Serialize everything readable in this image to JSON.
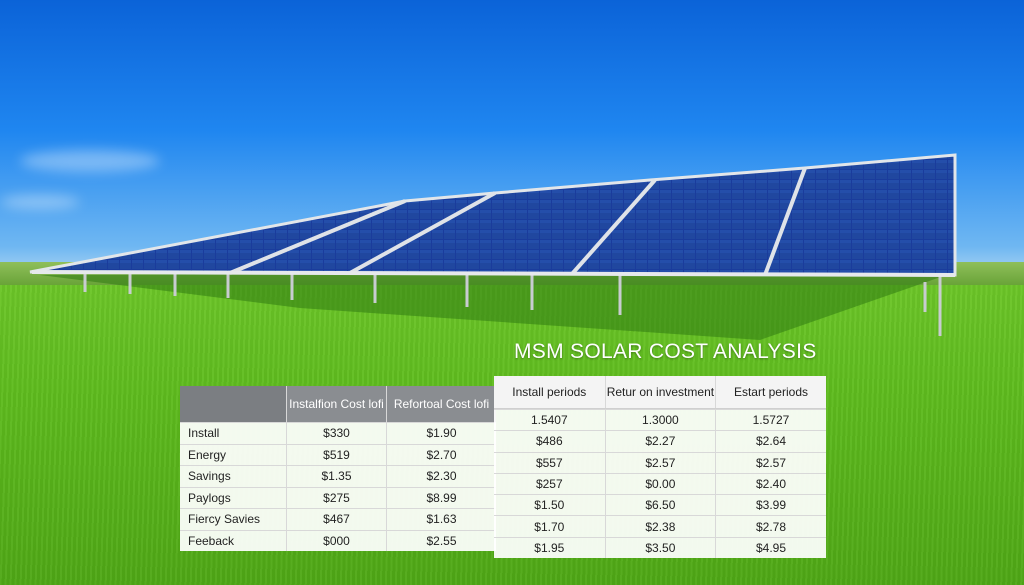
{
  "scene": {
    "colors": {
      "sky_top": "#0b63d8",
      "sky_bottom": "#c8e2f3",
      "grass": "#5fbc1e",
      "panel": "#1c3f9e",
      "frame": "#d9dde2"
    }
  },
  "title": "MSM SOLAR COST ANALYSIS",
  "left_table": {
    "headers": [
      "",
      "Instalfion Cost lofi",
      "Refortoal Cost lofi"
    ],
    "rows": [
      [
        "Install",
        "$330",
        "$1.90"
      ],
      [
        "Energy",
        "$519",
        "$2.70"
      ],
      [
        "Savings",
        "$1.35",
        "$2.30"
      ],
      [
        "Paylogs",
        "$275",
        "$8.99"
      ],
      [
        "Fiercy Savies",
        "$467",
        "$1.63"
      ],
      [
        "Feeback",
        "$000",
        "$2.55"
      ]
    ]
  },
  "right_table": {
    "headers": [
      "Install periods",
      "Retur on investment",
      "Estart periods"
    ],
    "rows": [
      [
        "1.5407",
        "1.3000",
        "1.5727"
      ],
      [
        "$486",
        "$2.27",
        "$2.64"
      ],
      [
        "$557",
        "$2.57",
        "$2.57"
      ],
      [
        "$257",
        "$0.00",
        "$2.40"
      ],
      [
        "$1.50",
        "$6.50",
        "$3.99"
      ],
      [
        "$1.70",
        "$2.38",
        "$2.78"
      ],
      [
        "$1.95",
        "$3.50",
        "$4.95"
      ]
    ]
  }
}
